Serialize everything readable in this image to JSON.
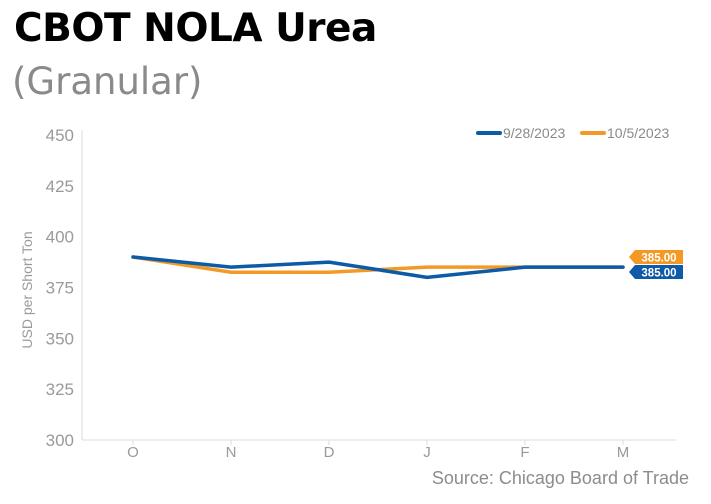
{
  "title": "CBOT NOLA Urea",
  "subtitle": "(Granular)",
  "source": "Source: Chicago Board of Trade",
  "chart_data": {
    "type": "line",
    "categories": [
      "O",
      "N",
      "D",
      "J",
      "F",
      "M"
    ],
    "ylabel": "USD per Short Ton",
    "xlabel": "",
    "ylim": [
      300,
      450
    ],
    "yticks": [
      300,
      325,
      350,
      375,
      400,
      425,
      450
    ],
    "grid": false,
    "legend_position": "top-right",
    "series": [
      {
        "name": "9/28/2023",
        "color": "#0d5aa7",
        "values": [
          390,
          385,
          387.5,
          380,
          385,
          385
        ],
        "end_label": "385.00"
      },
      {
        "name": "10/5/2023",
        "color": "#f39a26",
        "values": [
          390,
          382.5,
          382.5,
          385,
          385,
          385
        ],
        "end_label": "385.00"
      }
    ]
  }
}
